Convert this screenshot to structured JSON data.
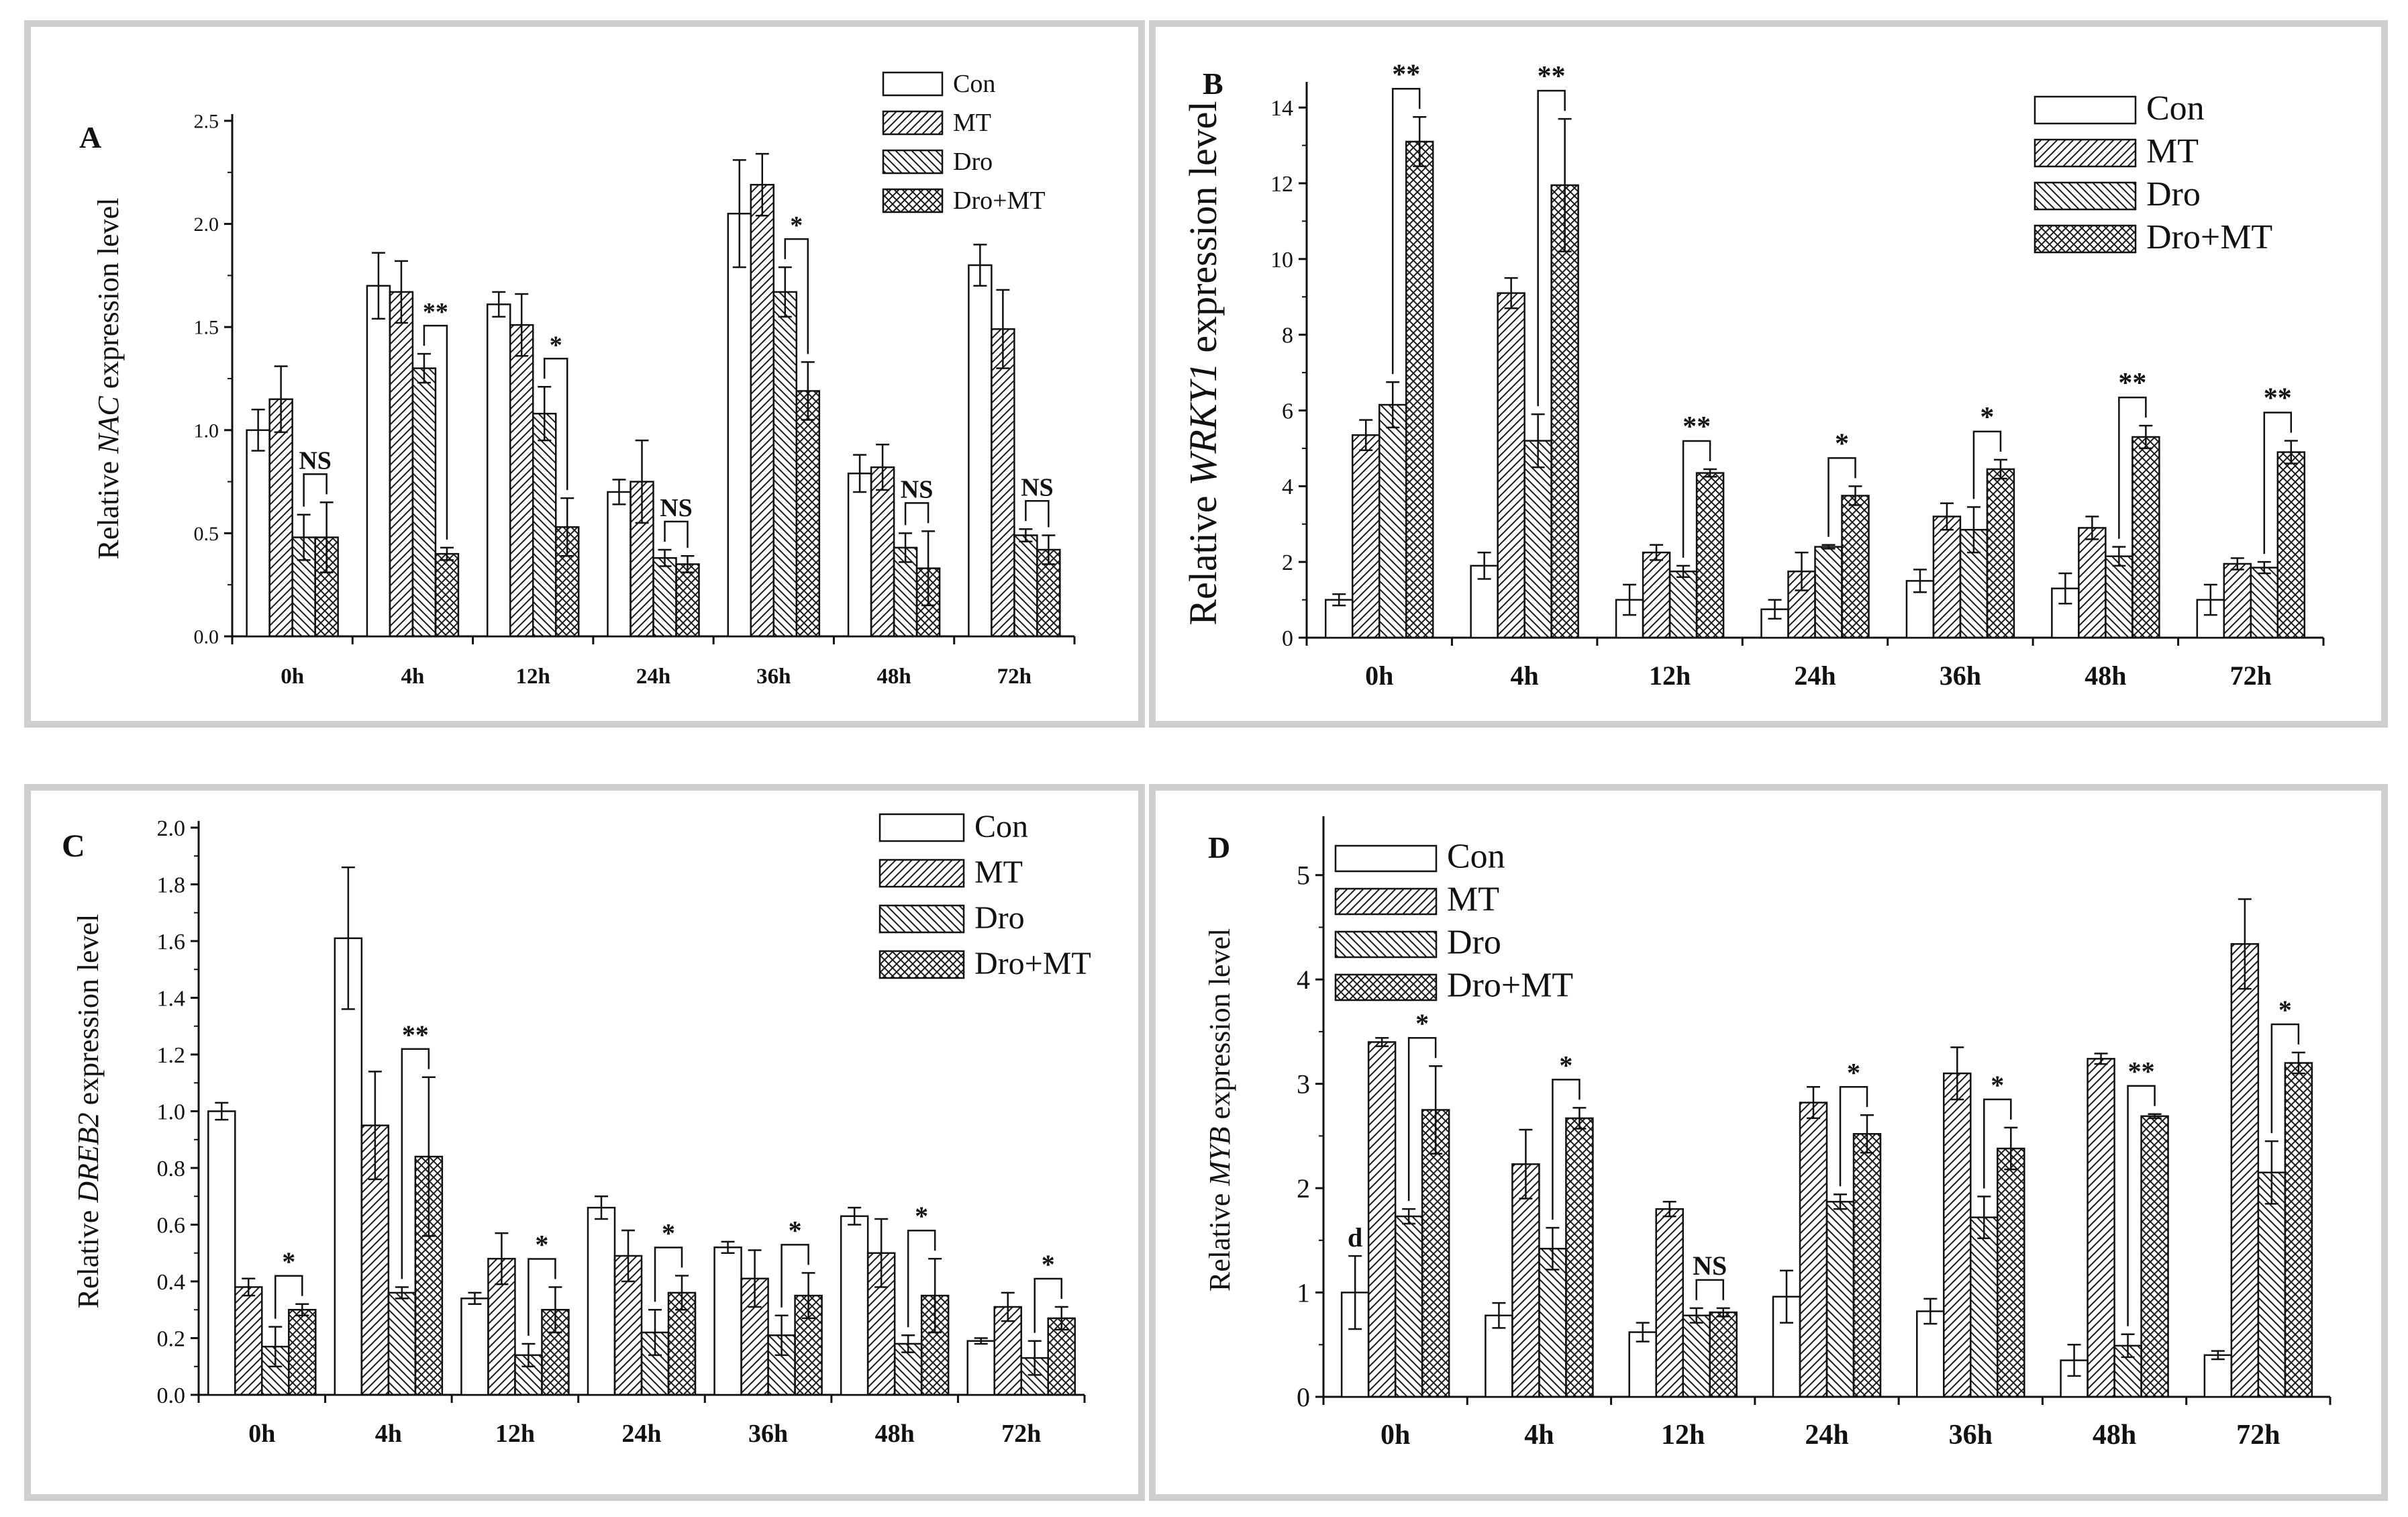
{
  "legend": {
    "con": "Con",
    "mt": "MT",
    "dro": "Dro",
    "dromt": "Dro+MT"
  },
  "chart_data": [
    {
      "type": "bar",
      "panel_label": "A",
      "gene": "NAC",
      "ylabel_prefix": "Relative ",
      "ylabel_gene": "NAC",
      "ylabel_suffix": " expression level",
      "legend_position": "top-right",
      "ylim": [
        0,
        2.5
      ],
      "ytick_step": 0.5,
      "ytick_decimals": 1,
      "categories": [
        "0h",
        "4h",
        "12h",
        "24h",
        "36h",
        "48h",
        "72h"
      ],
      "series": [
        {
          "name": "Con",
          "pattern": "none",
          "values": [
            1.0,
            1.7,
            1.61,
            0.7,
            2.05,
            0.79,
            1.8
          ],
          "errors": [
            0.1,
            0.16,
            0.06,
            0.06,
            0.26,
            0.09,
            0.1
          ]
        },
        {
          "name": "MT",
          "pattern": "fwd",
          "values": [
            1.15,
            1.67,
            1.51,
            0.75,
            2.19,
            0.82,
            1.49
          ],
          "errors": [
            0.16,
            0.15,
            0.15,
            0.2,
            0.15,
            0.11,
            0.19
          ]
        },
        {
          "name": "Dro",
          "pattern": "back",
          "values": [
            0.48,
            1.3,
            1.08,
            0.38,
            1.67,
            0.43,
            0.49
          ],
          "errors": [
            0.11,
            0.07,
            0.13,
            0.04,
            0.12,
            0.07,
            0.03
          ]
        },
        {
          "name": "Dro+MT",
          "pattern": "cross",
          "values": [
            0.48,
            0.4,
            0.53,
            0.35,
            1.19,
            0.33,
            0.42
          ],
          "errors": [
            0.17,
            0.03,
            0.14,
            0.04,
            0.14,
            0.18,
            0.07
          ]
        }
      ],
      "significance": [
        "NS",
        "**",
        "*",
        "NS",
        "*",
        "NS",
        "NS"
      ]
    },
    {
      "type": "bar",
      "panel_label": "B",
      "gene": "WRKY1",
      "ylabel_prefix": "Relative ",
      "ylabel_gene": "WRKY1",
      "ylabel_suffix": " expression level",
      "legend_position": "top-right",
      "ylim": [
        0,
        14.5
      ],
      "ytick_step": 2,
      "ytick_decimals": 0,
      "categories": [
        "0h",
        "4h",
        "12h",
        "24h",
        "36h",
        "48h",
        "72h"
      ],
      "series": [
        {
          "name": "Con",
          "pattern": "none",
          "values": [
            1.0,
            1.9,
            1.0,
            0.75,
            1.5,
            1.3,
            1.0
          ],
          "errors": [
            0.15,
            0.35,
            0.4,
            0.25,
            0.3,
            0.4,
            0.4
          ]
        },
        {
          "name": "MT",
          "pattern": "fwd",
          "values": [
            5.35,
            9.1,
            2.25,
            1.75,
            3.2,
            2.9,
            1.95
          ],
          "errors": [
            0.4,
            0.4,
            0.2,
            0.5,
            0.35,
            0.3,
            0.15
          ]
        },
        {
          "name": "Dro",
          "pattern": "back",
          "values": [
            6.15,
            5.2,
            1.75,
            2.4,
            2.85,
            2.15,
            1.85
          ],
          "errors": [
            0.6,
            0.7,
            0.15,
            0.05,
            0.6,
            0.25,
            0.15
          ]
        },
        {
          "name": "Dro+MT",
          "pattern": "cross",
          "values": [
            13.1,
            11.95,
            4.35,
            3.75,
            4.45,
            5.3,
            4.9
          ],
          "errors": [
            0.65,
            1.75,
            0.1,
            0.25,
            0.25,
            0.3,
            0.3
          ]
        }
      ],
      "significance": [
        "**",
        "**",
        "**",
        "*",
        "*",
        "**",
        "**"
      ]
    },
    {
      "type": "bar",
      "panel_label": "C",
      "gene": "DREB2",
      "ylabel_prefix": "Relative ",
      "ylabel_gene": "DREB2",
      "ylabel_suffix": " expression level",
      "legend_position": "top-right",
      "ylim": [
        0,
        2.0
      ],
      "ytick_step": 0.2,
      "ytick_decimals": 1,
      "categories": [
        "0h",
        "4h",
        "12h",
        "24h",
        "36h",
        "48h",
        "72h"
      ],
      "series": [
        {
          "name": "Con",
          "pattern": "none",
          "values": [
            1.0,
            1.61,
            0.34,
            0.66,
            0.52,
            0.63,
            0.19
          ],
          "errors": [
            0.03,
            0.25,
            0.02,
            0.04,
            0.02,
            0.03,
            0.01
          ]
        },
        {
          "name": "MT",
          "pattern": "fwd",
          "values": [
            0.38,
            0.95,
            0.48,
            0.49,
            0.41,
            0.5,
            0.31
          ],
          "errors": [
            0.03,
            0.19,
            0.09,
            0.09,
            0.1,
            0.12,
            0.05
          ]
        },
        {
          "name": "Dro",
          "pattern": "back",
          "values": [
            0.17,
            0.36,
            0.14,
            0.22,
            0.21,
            0.18,
            0.13
          ],
          "errors": [
            0.07,
            0.02,
            0.04,
            0.08,
            0.07,
            0.03,
            0.06
          ]
        },
        {
          "name": "Dro+MT",
          "pattern": "cross",
          "values": [
            0.3,
            0.84,
            0.3,
            0.36,
            0.35,
            0.35,
            0.27
          ],
          "errors": [
            0.02,
            0.28,
            0.08,
            0.06,
            0.08,
            0.13,
            0.04
          ]
        }
      ],
      "significance": [
        "*",
        "**",
        "*",
        "*",
        "*",
        "*",
        "*"
      ]
    },
    {
      "type": "bar",
      "panel_label": "D",
      "gene": "MYB",
      "ylabel_prefix": "Relative ",
      "ylabel_gene": "MYB",
      "ylabel_suffix": " expression level",
      "legend_position": "top-left",
      "ylim": [
        0,
        5.5
      ],
      "ytick_step": 1,
      "ytick_decimals": 0,
      "categories": [
        "0h",
        "4h",
        "12h",
        "24h",
        "36h",
        "48h",
        "72h"
      ],
      "series": [
        {
          "name": "Con",
          "pattern": "none",
          "values": [
            1.0,
            0.78,
            0.62,
            0.96,
            0.82,
            0.35,
            0.4
          ],
          "errors": [
            0.35,
            0.12,
            0.09,
            0.25,
            0.12,
            0.15,
            0.04
          ]
        },
        {
          "name": "MT",
          "pattern": "fwd",
          "values": [
            3.4,
            2.23,
            1.8,
            2.82,
            3.1,
            3.24,
            4.34
          ],
          "errors": [
            0.04,
            0.33,
            0.07,
            0.15,
            0.25,
            0.05,
            0.43
          ]
        },
        {
          "name": "Dro",
          "pattern": "back",
          "values": [
            1.73,
            1.42,
            0.78,
            1.87,
            1.72,
            0.49,
            2.15
          ],
          "errors": [
            0.07,
            0.2,
            0.07,
            0.07,
            0.2,
            0.11,
            0.3
          ]
        },
        {
          "name": "Dro+MT",
          "pattern": "cross",
          "values": [
            2.75,
            2.67,
            0.81,
            2.52,
            2.38,
            2.69,
            3.2
          ],
          "errors": [
            0.42,
            0.1,
            0.04,
            0.18,
            0.2,
            0.02,
            0.1
          ]
        }
      ],
      "significance": [
        "*",
        "*",
        "NS",
        "*",
        "*",
        "**",
        "*"
      ],
      "annotations": [
        {
          "text": "d",
          "category": "0h",
          "series": "Con"
        }
      ]
    }
  ]
}
